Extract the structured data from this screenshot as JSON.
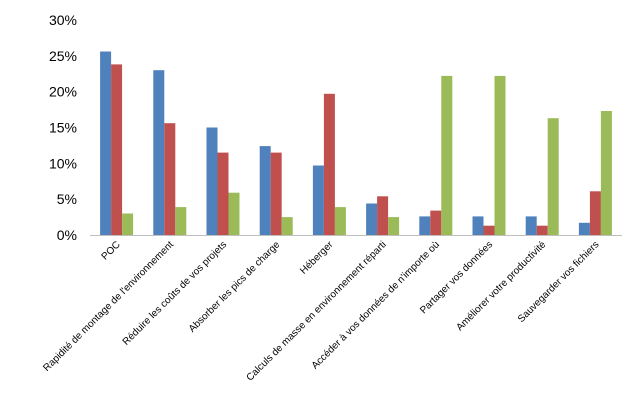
{
  "chart_data": {
    "type": "bar",
    "categories": [
      "POC",
      "Rapidité de montage de l'environnement",
      "Réduire les coûts de vos projets",
      "Absorber les pics de charge",
      "Héberger",
      "Calculs de masse en environnement réparti",
      "Accéder à vos données de n'importe où",
      "Partager vos données",
      "Améliorer votre productivité",
      "Sauvegarder vos fichiers"
    ],
    "series": [
      {
        "values": [
          25.6,
          23.0,
          15.0,
          12.4,
          9.7,
          4.4,
          2.6,
          2.6,
          2.6,
          1.7
        ],
        "color": "#4f81bd"
      },
      {
        "values": [
          23.8,
          15.6,
          11.5,
          11.5,
          19.7,
          5.4,
          3.4,
          1.3,
          1.3,
          6.1
        ],
        "color": "#c0504d"
      },
      {
        "values": [
          3.0,
          3.9,
          5.9,
          2.5,
          3.9,
          2.5,
          22.2,
          22.2,
          16.3,
          17.3
        ],
        "color": "#9bbb59"
      }
    ],
    "yticks": [
      "0%",
      "5%",
      "10%",
      "15%",
      "20%",
      "25%",
      "30%"
    ],
    "ylim": [
      0,
      30
    ],
    "grid": false,
    "legend": "none"
  }
}
